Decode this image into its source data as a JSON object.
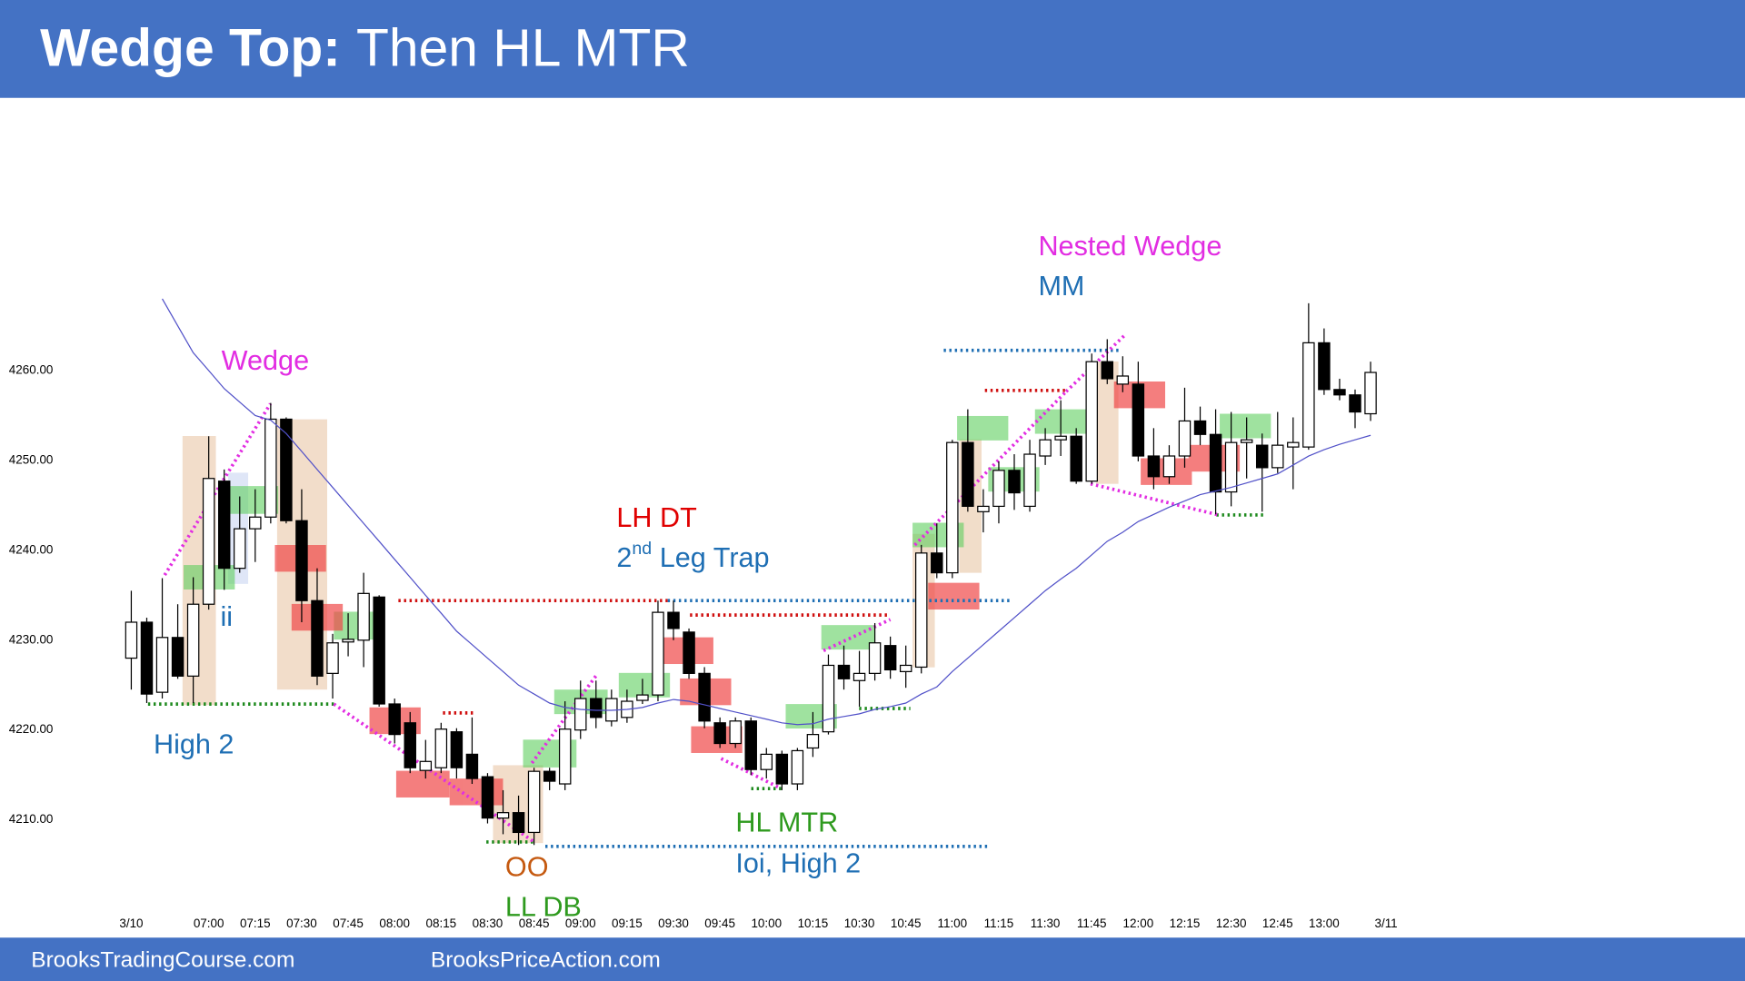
{
  "chart_data": {
    "type": "candlestick",
    "title": "Wedge Top:",
    "subtitle": "Then HL MTR",
    "categories": [
      "3/10",
      null,
      null,
      null,
      null,
      "07:00",
      null,
      null,
      "07:15",
      null,
      null,
      "07:30",
      null,
      null,
      "07:45",
      null,
      null,
      "08:00",
      null,
      null,
      "08:15",
      null,
      null,
      "08:30",
      null,
      null,
      "08:45",
      null,
      null,
      "09:00",
      null,
      null,
      "09:15",
      null,
      null,
      "09:30",
      null,
      null,
      "09:45",
      null,
      null,
      "10:00",
      null,
      null,
      "10:15",
      null,
      null,
      "10:30",
      null,
      null,
      "10:45",
      null,
      null,
      "11:00",
      null,
      null,
      "11:15",
      null,
      null,
      "11:30",
      null,
      null,
      "11:45",
      null,
      null,
      "12:00",
      null,
      null,
      "12:15",
      null,
      null,
      "12:30",
      null,
      null,
      "12:45",
      null,
      null,
      "13:00",
      null,
      null,
      null,
      "3/11"
    ],
    "open": [
      4228,
      4232,
      4224.2,
      4230.3,
      4226,
      4234,
      4247.7,
      4238,
      4242.4,
      4243.7,
      4254.6,
      4243.3,
      4234.4,
      4226.3,
      4229.8,
      4230,
      4234.8,
      4222.9,
      4220.8,
      4215.5,
      4215.8,
      4219.8,
      4217.3,
      4214.8,
      4210.2,
      4210.8,
      4208.6,
      4215.4,
      4214,
      4220,
      4223.5,
      4221,
      4221.4,
      4223.3,
      4223.9,
      4233.1,
      4230.9,
      4226.3,
      4220.8,
      4218.5,
      4221,
      4215.6,
      4217.3,
      4214,
      4218,
      4219.8,
      4227.2,
      4225.5,
      4226.3,
      4229.4,
      4226.5,
      4227,
      4239.7,
      4237.5,
      4252,
      4244.3,
      4244.9,
      4248.9,
      4244.9,
      4250.5,
      4252.3,
      4252.7,
      4247.7,
      4261,
      4258.5,
      4258.5,
      4250.5,
      4248.2,
      4250.5,
      4254.4,
      4252.9,
      4246.5,
      4252,
      4251.7,
      4249.2,
      4251.5,
      4251.5,
      4263.1,
      4257.9,
      4257.3,
      4255.2,
      null
    ],
    "high": [
      4235.5,
      4232.5,
      4236.9,
      4234,
      4237,
      4252.7,
      4249,
      4246,
      4246.8,
      4256.4,
      4254.8,
      4246.8,
      4238,
      4230.7,
      4233,
      4237.5,
      4235,
      4223.5,
      4222,
      4218.9,
      4220.8,
      4220.2,
      4221.4,
      4215.2,
      4213.3,
      4212.7,
      4215.8,
      4215.8,
      4223.2,
      4225.5,
      4225.5,
      4224.5,
      4224.5,
      4225.7,
      4234.4,
      4234.4,
      4231.3,
      4227,
      4221.4,
      4221.4,
      4221.4,
      4218,
      4217.7,
      4218,
      4222,
      4228.4,
      4229.4,
      4228.8,
      4231.9,
      4230.4,
      4229.4,
      4240.6,
      4243,
      4252.3,
      4255.7,
      4246.8,
      4249.9,
      4250.7,
      4252.3,
      4253.6,
      4256.7,
      4253.6,
      4261.9,
      4263.5,
      4261.6,
      4261,
      4253.6,
      4251.7,
      4258.1,
      4256,
      4255.7,
      4255.4,
      4254.8,
      4253,
      4255.4,
      4254.8,
      4267.5,
      4264.7,
      4259.1,
      4257.9,
      4261,
      null
    ],
    "low": [
      4224.5,
      4223,
      4223.5,
      4225.7,
      4223,
      4233.4,
      4235.6,
      4237.5,
      4238.7,
      4243,
      4243,
      4232,
      4225,
      4223.5,
      4228.2,
      4227,
      4222.6,
      4218.5,
      4215.2,
      4214.6,
      4215.2,
      4214.6,
      4214,
      4209.6,
      4208.4,
      4207.2,
      4207.2,
      4213.3,
      4213.3,
      4219,
      4220.2,
      4220.4,
      4220.8,
      4222.9,
      4223.2,
      4230,
      4225.7,
      4220.2,
      4218,
      4218,
      4215,
      4214.6,
      4213.3,
      4213.3,
      4217,
      4219.5,
      4224.5,
      4222.6,
      4225.5,
      4225.7,
      4224.7,
      4226.3,
      4236.9,
      4236.9,
      4244.3,
      4242,
      4243,
      4244.5,
      4244.3,
      4249.5,
      4250.5,
      4247.4,
      4247.4,
      4258.5,
      4257.6,
      4249.9,
      4246.8,
      4247.4,
      4249.2,
      4251.7,
      4244,
      4244.9,
      4248,
      4244.3,
      4248.6,
      4246.8,
      4251.2,
      4257.3,
      4256.7,
      4253.6,
      4254.4,
      null
    ],
    "close": [
      4232,
      4224,
      4230.3,
      4226,
      4234,
      4248,
      4238,
      4242.4,
      4243.7,
      4254.6,
      4243.3,
      4234.4,
      4226,
      4229.7,
      4230.1,
      4235.2,
      4222.9,
      4219.5,
      4215.8,
      4216.5,
      4220.1,
      4215.8,
      4214.6,
      4210.2,
      4210.8,
      4208.6,
      4215.4,
      4214.3,
      4220.1,
      4223.5,
      4221.4,
      4223.5,
      4223.2,
      4223.9,
      4233.1,
      4231.3,
      4226.3,
      4221,
      4218.5,
      4221,
      4215.6,
      4217.3,
      4214,
      4217.7,
      4219.5,
      4227.2,
      4225.7,
      4226.3,
      4229.7,
      4226.7,
      4227.2,
      4239.7,
      4237.5,
      4252,
      4244.9,
      4244.9,
      4248.9,
      4246.4,
      4250.7,
      4252.3,
      4252.7,
      4247.7,
      4261,
      4259.1,
      4259.4,
      4250.5,
      4248.2,
      4250.5,
      4254.4,
      4252.9,
      4246.5,
      4252,
      4252.3,
      4249.2,
      4251.7,
      4252,
      4263.1,
      4257.9,
      4257.3,
      4255.4,
      4259.8,
      null
    ],
    "moving_average": {
      "color": "#5050c8",
      "values": [
        null,
        null,
        4268,
        4265,
        4262,
        4260,
        4258,
        4256.5,
        4255,
        4254.5,
        4253,
        4251,
        4249,
        4247,
        4245,
        4243,
        4241,
        4239,
        4237,
        4235,
        4233,
        4231,
        4229.5,
        4228,
        4226.5,
        4225,
        4224,
        4223,
        4222.5,
        4222.3,
        4222.2,
        4222.2,
        4222.3,
        4222.5,
        4223,
        4223.4,
        4223.2,
        4222.8,
        4222.4,
        4222,
        4221.6,
        4221.2,
        4220.8,
        4220.6,
        4220.7,
        4221.2,
        4221.5,
        4221.8,
        4222.3,
        4222.6,
        4223,
        4224,
        4224.8,
        4226.5,
        4228,
        4229.5,
        4231,
        4232.5,
        4234,
        4235.5,
        4236.8,
        4238,
        4239.5,
        4241,
        4242,
        4243.2,
        4244,
        4244.8,
        4245.5,
        4246.2,
        4246.6,
        4247,
        4247.5,
        4248,
        4248.5,
        4249.5,
        4250.5,
        4251.2,
        4251.8,
        4252.3,
        4252.8,
        null
      ]
    },
    "ylim": [
      4198.5,
      4289
    ],
    "yticks": [
      {
        "value": 4210,
        "label": "4210.00"
      },
      {
        "value": 4220,
        "label": "4220.00"
      },
      {
        "value": 4230,
        "label": "4230.00"
      },
      {
        "value": 4240,
        "label": "4240.00"
      },
      {
        "value": 4250,
        "label": "4250.00"
      },
      {
        "value": 4260,
        "label": "4260.00"
      }
    ],
    "bull_color": "#ffffff",
    "bear_color": "#000000",
    "annotations": [
      {
        "text": "Wedge",
        "color": "#e22de2"
      },
      {
        "text": "ii",
        "color": "#1f6fb4"
      },
      {
        "text": "High 2",
        "color": "#1f6fb4"
      },
      {
        "text": "OO",
        "color": "#c55a11"
      },
      {
        "text": "LL DB",
        "color": "#2e9a1e"
      },
      {
        "text": "LH DT",
        "color": "#e00000"
      },
      {
        "text": "2",
        "superscript": "nd",
        "suffix": "Leg Trap",
        "color": "#1f6fb4"
      },
      {
        "text": "HL MTR",
        "color": "#2e9a1e"
      },
      {
        "text": "Ioi, High 2",
        "color": "#1f6fb4"
      },
      {
        "text": "Nested Wedge",
        "color": "#e22de2"
      },
      {
        "text": "MM",
        "color": "#1f6fb4"
      }
    ]
  },
  "footer": {
    "left": "BrooksTradingCourse.com",
    "right": "BrooksPriceAction.com"
  }
}
